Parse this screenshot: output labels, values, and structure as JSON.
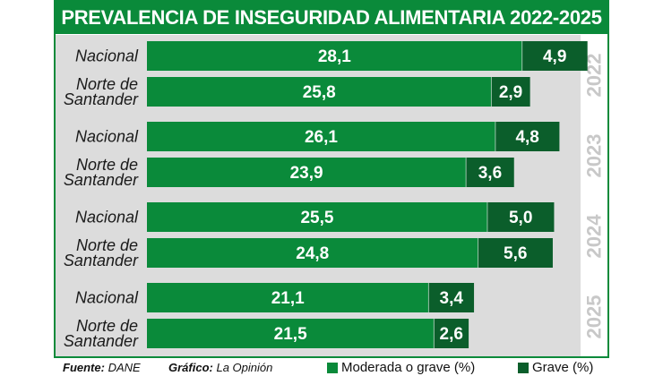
{
  "title": "PREVALENCIA DE INSEGURIDAD ALIMENTARIA 2022-2025",
  "colors": {
    "moderate": "#0a8a3a",
    "severe": "#0b5e2b",
    "band": "#dcdcdc",
    "year_text": "#c8c8c8",
    "frame": "#0a8a3a"
  },
  "footer": {
    "source_label": "Fuente:",
    "source_value": "DANE",
    "graphic_label": "Gráfico:",
    "graphic_value": "La Opinión"
  },
  "chart_data": {
    "type": "bar",
    "orientation": "horizontal",
    "stacked": true,
    "title": "PREVALENCIA DE INSEGURIDAD ALIMENTARIA 2022-2025",
    "legend": [
      {
        "label": "Moderada o grave (%)",
        "color": "#0a8a3a"
      },
      {
        "label": "Grave (%)",
        "color": "#0b5e2b"
      }
    ],
    "legend_position": "bottom-right",
    "groups": [
      {
        "year": "2022",
        "rows": [
          {
            "label_lines": [
              "Nacional"
            ],
            "moderate": 28.1,
            "moderate_label": "28,1",
            "severe": 4.9,
            "severe_label": "4,9"
          },
          {
            "label_lines": [
              "Norte de",
              "Santander"
            ],
            "moderate": 25.8,
            "moderate_label": "25,8",
            "severe": 2.9,
            "severe_label": "2,9"
          }
        ]
      },
      {
        "year": "2023",
        "rows": [
          {
            "label_lines": [
              "Nacional"
            ],
            "moderate": 26.1,
            "moderate_label": "26,1",
            "severe": 4.8,
            "severe_label": "4,8"
          },
          {
            "label_lines": [
              "Norte de",
              "Santander"
            ],
            "moderate": 23.9,
            "moderate_label": "23,9",
            "severe": 3.6,
            "severe_label": "3,6"
          }
        ]
      },
      {
        "year": "2024",
        "rows": [
          {
            "label_lines": [
              "Nacional"
            ],
            "moderate": 25.5,
            "moderate_label": "25,5",
            "severe": 5.0,
            "severe_label": "5,0"
          },
          {
            "label_lines": [
              "Norte de",
              "Santander"
            ],
            "moderate": 24.8,
            "moderate_label": "24,8",
            "severe": 5.6,
            "severe_label": "5,6"
          }
        ]
      },
      {
        "year": "2025",
        "rows": [
          {
            "label_lines": [
              "Nacional"
            ],
            "moderate": 21.1,
            "moderate_label": "21,1",
            "severe": 3.4,
            "severe_label": "3,4"
          },
          {
            "label_lines": [
              "Norte de",
              "Santander"
            ],
            "moderate": 21.5,
            "moderate_label": "21,5",
            "severe": 2.6,
            "severe_label": "2,6"
          }
        ]
      }
    ]
  }
}
